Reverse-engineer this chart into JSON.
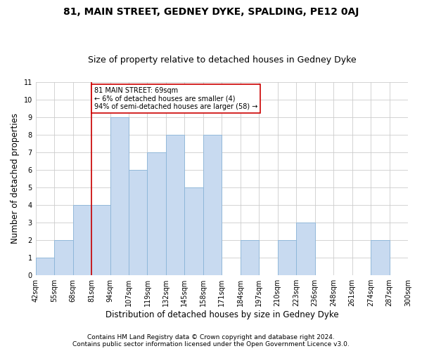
{
  "title": "81, MAIN STREET, GEDNEY DYKE, SPALDING, PE12 0AJ",
  "subtitle": "Size of property relative to detached houses in Gedney Dyke",
  "xlabel": "Distribution of detached houses by size in Gedney Dyke",
  "ylabel": "Number of detached properties",
  "footnote1": "Contains HM Land Registry data © Crown copyright and database right 2024.",
  "footnote2": "Contains public sector information licensed under the Open Government Licence v3.0.",
  "bin_labels": [
    "42sqm",
    "55sqm",
    "68sqm",
    "81sqm",
    "94sqm",
    "107sqm",
    "119sqm",
    "132sqm",
    "145sqm",
    "158sqm",
    "171sqm",
    "184sqm",
    "197sqm",
    "210sqm",
    "223sqm",
    "236sqm",
    "248sqm",
    "261sqm",
    "274sqm",
    "287sqm",
    "300sqm"
  ],
  "bar_values": [
    1,
    2,
    4,
    4,
    9,
    6,
    7,
    8,
    5,
    8,
    0,
    2,
    0,
    2,
    3,
    0,
    0,
    0,
    2,
    0
  ],
  "bar_color": "#c8daf0",
  "bar_edge_color": "#8ab4d8",
  "annotation_text": "81 MAIN STREET: 69sqm\n← 6% of detached houses are smaller (4)\n94% of semi-detached houses are larger (58) →",
  "annotation_box_color": "#ffffff",
  "annotation_box_edge": "#cc0000",
  "vline_color": "#cc0000",
  "ylim": [
    0,
    11
  ],
  "yticks": [
    0,
    1,
    2,
    3,
    4,
    5,
    6,
    7,
    8,
    9,
    10,
    11
  ],
  "title_fontsize": 10,
  "subtitle_fontsize": 9,
  "xlabel_fontsize": 8.5,
  "ylabel_fontsize": 8.5,
  "tick_fontsize": 7,
  "annotation_fontsize": 7,
  "footnote_fontsize": 6.5
}
